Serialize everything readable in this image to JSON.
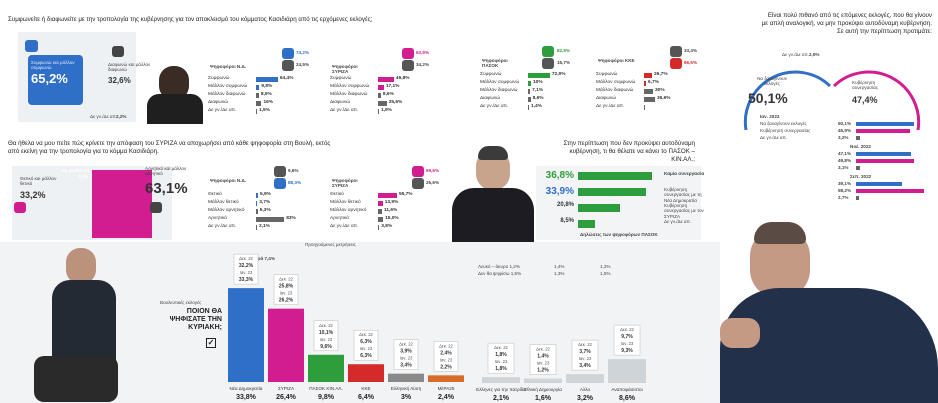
{
  "q1": {
    "title": "Συμφωνείτε ή διαφωνείτε με την τροπολογία της κυβέρνησης για τον αποκλεισμό του κόμματος Κασιδιάρη από τις ερχόμενες εκλογές;",
    "agree_label": "Συμφωνώ και μάλλον συμφωνώ",
    "agree": "65,2%",
    "disagree_label": "Διαφωνώ και μάλλον διαφωνώ",
    "disagree": "32,6%",
    "dkna_label": "Δε γν./Δε απ.",
    "dkna": "2,2%",
    "nd": {
      "name": "Ψηφοφόροι Ν.Δ.",
      "up": "74,2%",
      "down": "24,5%",
      "rows": [
        [
          "Συμφωνώ",
          "64,4%"
        ],
        [
          "Μάλλον συμφωνώ",
          "9,8%"
        ],
        [
          "Μάλλον διαφωνώ",
          "8,5%"
        ],
        [
          "Διαφωνώ",
          "16%"
        ],
        [
          "Δε γν./Δε απ.",
          "1,5%"
        ]
      ]
    },
    "syriza": {
      "name": "Ψηφοφόροι ΣΥΡΙΖΑ",
      "up": "63,9%",
      "down": "34,2%",
      "rows": [
        [
          "Συμφωνώ",
          "46,8%"
        ],
        [
          "Μάλλον συμφωνώ",
          "17,1%"
        ],
        [
          "Μάλλον διαφωνώ",
          "8,6%"
        ],
        [
          "Διαφωνώ",
          "25,6%"
        ],
        [
          "Δε γν./Δε απ.",
          "1,9%"
        ]
      ]
    },
    "pasok": {
      "name": "Ψηφοφόροι ΠΑΣΟΚ",
      "up": "82,9%",
      "down": "15,7%",
      "rows": [
        [
          "Συμφωνώ",
          "72,9%"
        ],
        [
          "Μάλλον συμφωνώ",
          "10%"
        ],
        [
          "Μάλλον διαφωνώ",
          "7,1%"
        ],
        [
          "Διαφωνώ",
          "8,6%"
        ],
        [
          "Δε γν./Δε απ.",
          "1,4%"
        ]
      ]
    },
    "kke": {
      "name": "Ψηφοφόροι ΚΚΕ",
      "up": "33,4%",
      "down": "66,6%",
      "rows": [
        [
          "Συμφωνώ",
          "26,7%"
        ],
        [
          "Μάλλον συμφωνώ",
          "6,7%"
        ],
        [
          "Μάλλον διαφωνώ",
          "30%"
        ],
        [
          "Διαφωνώ",
          "36,6%"
        ],
        [
          "Δε γν./Δε απ.",
          ""
        ]
      ]
    }
  },
  "q2": {
    "title": "Θα ήθελα να μου πείτε πώς κρίνετε την απόφαση του ΣΥΡΙΖΑ να αποχωρήσει από κάθε ψηφοφορία στη Βουλή, εκτός από εκείνη για την τροπολογία για το κόμμα Κασιδιάρη.",
    "pos_label": "Θετικό και μάλλον θετικό",
    "pos": "33,2%",
    "neg_label": "Αρνητικό και μάλλον αρνητικό",
    "neg": "63,1%",
    "dkna_label": "Δε γν./Δε απ.",
    "dkna": "3,7%",
    "nd": {
      "name": "Ψηφοφόροι Ν.Δ.",
      "up": "9,6%",
      "down": "88,3%",
      "rows": [
        [
          "Θετικό",
          "5,9%"
        ],
        [
          "Μάλλον θετικό",
          "3,7%"
        ],
        [
          "Μάλλον αρνητικό",
          "5,3%"
        ],
        [
          "Αρνητικό",
          "83%"
        ],
        [
          "Δε γν./Δε απ.",
          "2,1%"
        ]
      ]
    },
    "syriza": {
      "name": "Ψηφοφόροι ΣΥΡΙΖΑ",
      "up": "69,6%",
      "down": "26,6%",
      "rows": [
        [
          "Θετικό",
          "55,7%"
        ],
        [
          "Μάλλον θετικό",
          "13,9%"
        ],
        [
          "Μάλλον αρνητικό",
          "11,6%"
        ],
        [
          "Αρνητικό",
          "15,0%"
        ],
        [
          "Δε γν./Δε απ.",
          "3,8%"
        ]
      ]
    }
  },
  "q3": {
    "title": "Στην περίπτωση που δεν προκύψει αυτοδύναμη κυβέρνηση, τι θα θέλατε να κάνει το ΠΑΣΟΚ – ΚΙΝ.ΑΛ.;",
    "rows": [
      [
        "36,8%",
        "Καμία συνεργασία"
      ],
      [
        "33,9%",
        "Κυβέρνηση συνεργασίας με τη Νέα Δημοκρατία"
      ],
      [
        "20,8%",
        "Κυβέρνηση συνεργασίας με τον ΣΥΡΙΖΑ"
      ],
      [
        "8,5%",
        "Δε γν./Δε απ."
      ]
    ],
    "note": "Δηλώσεις των ψηφοφόρων ΠΑΣΟΚ"
  },
  "q4": {
    "title": "Είναι πολύ πιθανό από τις επόμενες εκλογές, που θα γίνουν με απλή αναλογική, να μην προκύψει αυτοδύναμη κυβέρνηση. Σε αυτή την περίπτωση προτιμάτε:",
    "sole_label": "Να ξαναγίνουν εκλογές",
    "sole": "50,1%",
    "coal_label": "Κυβέρνηση συνεργασίας",
    "coal": "47,4%",
    "dkna_label": "Δε γν./Δε απ.",
    "dkna": "2,5%",
    "periods": [
      {
        "name": "Ιαν. 2023",
        "rows": [
          [
            "Να ξαναγίνουν εκλογές",
            "50,1%"
          ],
          [
            "Κυβέρνηση συνεργασίας",
            "45,9%"
          ],
          [
            "Δε γν./Δε απ.",
            "3,2%"
          ]
        ]
      },
      {
        "name": "Νοέ. 2022",
        "rows": [
          [
            "",
            "47,1%"
          ],
          [
            "",
            "49,8%"
          ],
          [
            "",
            "3,1%"
          ]
        ]
      },
      {
        "name": "Σεπ. 2022",
        "rows": [
          [
            "",
            "39,1%"
          ],
          [
            "",
            "58,2%"
          ],
          [
            "",
            "2,7%"
          ]
        ]
      }
    ]
  },
  "vote": {
    "question": "ΠΟΙΟΝ ΘΑ ΨΗΦΙΣΑΤΕ ΤΗΝ ΚΥΡΙΑΚΗ;",
    "sub": "Βουλευτικές εκλογές",
    "diff": "Προηγούμενες μετρήσεις",
    "diff_nd": "Διαφορά 7,4%",
    "parties": [
      {
        "name": "Νέα Δημοκρατία",
        "val": "33,8%",
        "d22": "32,2%",
        "j23": "33,3%"
      },
      {
        "name": "ΣΥΡΙΖΑ",
        "val": "26,4%",
        "d22": "25,8%",
        "j23": "26,2%"
      },
      {
        "name": "ΠΑΣΟΚ ΚΙΝ.ΑΛ.",
        "val": "9,8%",
        "d22": "10,1%",
        "j23": "9,6%"
      },
      {
        "name": "ΚΚΕ",
        "val": "6,4%",
        "d22": "6,3%",
        "j23": "6,3%"
      },
      {
        "name": "Ελληνική Λύση",
        "val": "3%",
        "d22": "3,9%",
        "j23": "3,4%"
      },
      {
        "name": "ΜέΡΑ25",
        "val": "2,4%",
        "d22": "2,4%",
        "j23": "2,2%"
      }
    ],
    "others": [
      {
        "name": "Ελληνες για την πατρίδα",
        "val": "2,1%",
        "d22": "1,8%",
        "j23": "1,8%"
      },
      {
        "name": "Εθνική Δημιουργία",
        "val": "1,6%",
        "d22": "1,4%",
        "j23": "1,2%"
      },
      {
        "name": "Αλλο",
        "val": "3,2%",
        "d22": "3,7%",
        "j23": "3,4%"
      },
      {
        "name": "Αναποφάσιστοι",
        "val": "8,6%",
        "d22": "9,7%",
        "j23": "9,3%"
      }
    ],
    "legend1": "Λευκό – άκυρο 1,2%",
    "legend2": "Δεν θα ψηφίσω 1,5%",
    "l1d": "1,4%",
    "l1j": "1,2%",
    "l2d": "1,3%",
    "l2j": "1,5%",
    "dlabel": "Δεκ. 22",
    "jlabel": "Ιαν. 23"
  },
  "colors": {
    "blue": "#2f6fc8",
    "magenta": "#d11d8f",
    "green": "#2e9e3d",
    "red": "#d42a2a",
    "gray": "#888"
  }
}
